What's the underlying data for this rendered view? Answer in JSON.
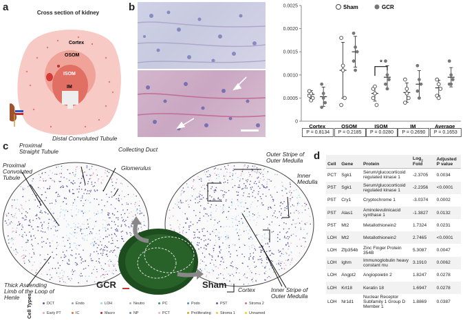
{
  "panel_labels": {
    "a": "a",
    "b": "b",
    "c": "c",
    "d": "d"
  },
  "panel_a": {
    "title": "Cross section of kidney",
    "regions": [
      "Cortex",
      "OSOM",
      "ISOM",
      "IM"
    ],
    "colors": {
      "cortex": "#f6c9c4",
      "osom": "#ee9c92",
      "isom": "#e8756a",
      "im": "#f0f0f0"
    }
  },
  "panel_b": {
    "chart_data": {
      "type": "scatter",
      "categories": [
        "Cortex",
        "OSOM",
        "ISOM",
        "IM",
        "Average"
      ],
      "series": [
        {
          "name": "Sham",
          "values": [
            [
              0.00055,
              0.0006,
              0.0005,
              0.00065,
              0.00045
            ],
            [
              0.0018,
              0.0012,
              0.0005,
              0.00035,
              0.0011
            ],
            [
              0.0007,
              0.0006,
              0.00035,
              0.0005,
              0.00075
            ],
            [
              0.0009,
              0.0006,
              0.0005,
              0.0004,
              0.0007
            ],
            [
              0.0009,
              0.0008,
              0.0007,
              0.00055,
              0.0005
            ]
          ],
          "mean": [
            0.00058,
            0.0011,
            0.0006,
            0.00062,
            0.00072
          ]
        },
        {
          "name": "GCR",
          "values": [
            [
              0.0008,
              0.0006,
              0.0004,
              0.0003,
              0.0005
            ],
            [
              0.0019,
              0.0016,
              0.0015,
              0.0013,
              0.0011
            ],
            [
              0.0013,
              0.001,
              0.0009,
              0.0008,
              0.0007
            ],
            [
              0.0012,
              0.0009,
              0.0008,
              0.00065,
              0.0005
            ],
            [
              0.0013,
              0.001,
              0.0009,
              0.0008,
              0.0008
            ]
          ],
          "mean": [
            0.00053,
            0.0015,
            0.00095,
            0.0008,
            0.00095
          ]
        }
      ],
      "ylim": [
        0,
        0.0025
      ],
      "yticks": [
        "0.0025",
        "0.0020",
        "0.0015",
        "0.0010",
        "0.0005",
        "0"
      ],
      "pvalues": [
        "P = 0.8134",
        "P = 0.2185",
        "P = 0.0280",
        "P = 0.2690",
        "P = 0.1653"
      ],
      "legend": [
        "Sham",
        "GCR"
      ],
      "significance": "*"
    }
  },
  "panel_c": {
    "annotations_left": [
      "Proximal Straight Tubule",
      "Distal Convoluted Tubule",
      "Collecting Duct",
      "Glomerulus",
      "Proximal Convoluted Tubule",
      "Thick Ascending Limb of the Loop of Henle"
    ],
    "annotations_right": [
      "Outer Stripe of Outer Medulla",
      "Inner Medulla",
      "Cortex",
      "Inner Stripe of Outer Medulla"
    ],
    "group_gcr": "GCR",
    "group_sham": "Sham",
    "legend_title": "Cell Types",
    "legend": [
      {
        "label": "DCT",
        "color": "#5a5a9e"
      },
      {
        "label": "Endo",
        "color": "#8aa0c0"
      },
      {
        "label": "LOH",
        "color": "#9fd0e8"
      },
      {
        "label": "Neutro",
        "color": "#b0b0b0"
      },
      {
        "label": "PC",
        "color": "#2aa05a"
      },
      {
        "label": "Podo",
        "color": "#4a90d0"
      },
      {
        "label": "PST",
        "color": "#6a5aa0"
      },
      {
        "label": "Stroma 2",
        "color": "#d07080"
      },
      {
        "label": "Early PT",
        "color": "#f0a0c0"
      },
      {
        "label": "IC",
        "color": "#e07030"
      },
      {
        "label": "Macro",
        "color": "#c02020"
      },
      {
        "label": "NP",
        "color": "#7090b0"
      },
      {
        "label": "PCT",
        "color": "#f0b0c8"
      },
      {
        "label": "Proliferating",
        "color": "#e0a020"
      },
      {
        "label": "Stroma 1",
        "color": "#f0c040"
      },
      {
        "label": "Unnamed",
        "color": "#f0d020"
      }
    ]
  },
  "panel_d": {
    "headers": {
      "cell": "Cell",
      "gene": "Gene",
      "protein": "Protein",
      "fold_pre": "Log",
      "fold_sub": "2",
      "fold_post": " Fold",
      "adj": "Adjusted P value"
    },
    "rows": [
      {
        "cell": "PCT",
        "gene": "Sgk1",
        "protein": "Serum/glucocorticoid regulated kinase 1",
        "fold": "-2.3705",
        "p": "0.0034"
      },
      {
        "cell": "PST",
        "gene": "Sgk1",
        "protein": "Serum/glucocorticoid regulated kinase 1",
        "fold": "-2.2356",
        "p": "<0.0001"
      },
      {
        "cell": "PST",
        "gene": "Cry1",
        "protein": "Cryptochrome 1",
        "fold": "-3.0374",
        "p": "0.0002"
      },
      {
        "cell": "PST",
        "gene": "Alas1",
        "protein": "Aminolevulinicacid synthase 1",
        "fold": "-1.3827",
        "p": "0.0132"
      },
      {
        "cell": "PST",
        "gene": "Mt2",
        "protein": "Metallothionein2",
        "fold": "1.7324",
        "p": "0.0231"
      },
      {
        "cell": "LOH",
        "gene": "Mt2",
        "protein": "Metallothionein2",
        "fold": "2.7465",
        "p": "<0.0001"
      },
      {
        "cell": "LOH",
        "gene": "Zfp354b",
        "protein": "Zinc Finger Protein 354B",
        "fold": "5.3087",
        "p": "0.0047"
      },
      {
        "cell": "LOH",
        "gene": "Ighm",
        "protein": "Immunoglobulin heavy constant mu",
        "fold": "3.1910",
        "p": "0.0062"
      },
      {
        "cell": "LOH",
        "gene": "Angpt2",
        "protein": "Angiopoietin 2",
        "fold": "1.8247",
        "p": "0.0278"
      },
      {
        "cell": "LOH",
        "gene": "Krt18",
        "protein": "Keratin 18",
        "fold": "1.6947",
        "p": "0.0278"
      },
      {
        "cell": "LOH",
        "gene": "Nr1d1",
        "protein": "Nuclear Receptor Subfamily 1 Group D Member 1",
        "fold": "1.8869",
        "p": "0.0387"
      }
    ]
  }
}
